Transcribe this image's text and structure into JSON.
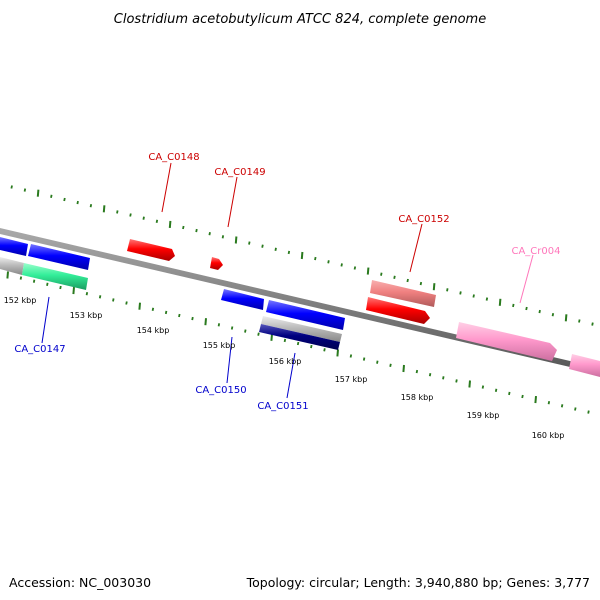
{
  "title": "Clostridium acetobutylicum ATCC 824, complete genome",
  "footer": {
    "accession": "Accession: NC_003030",
    "topology": "Topology: circular; Length: 3,940,880 bp; Genes: 3,777"
  },
  "colors": {
    "backbone": "#808080",
    "tick": "#2a7a1e",
    "cds_red": "#ff0000",
    "cds_pink": "#f08080",
    "cds_blue": "#0000ff",
    "cds_navy": "#000080",
    "rna_pink": "#ff99cc",
    "cds_green": "#33ee99",
    "cds_gray": "#bbbbbb",
    "label_red": "#cc0000",
    "label_blue": "#0000cc",
    "label_pink": "#ff77bb"
  },
  "scale_labels": [
    "152 kbp",
    "153 kbp",
    "154 kbp",
    "155 kbp",
    "156 kbp",
    "157 kbp",
    "158 kbp",
    "159 kbp",
    "160 kbp"
  ],
  "gene_labels": [
    "CA_C0148",
    "CA_C0149",
    "CA_C0152",
    "CA_Cr004",
    "CA_C0147",
    "CA_C0150",
    "CA_C0151"
  ]
}
